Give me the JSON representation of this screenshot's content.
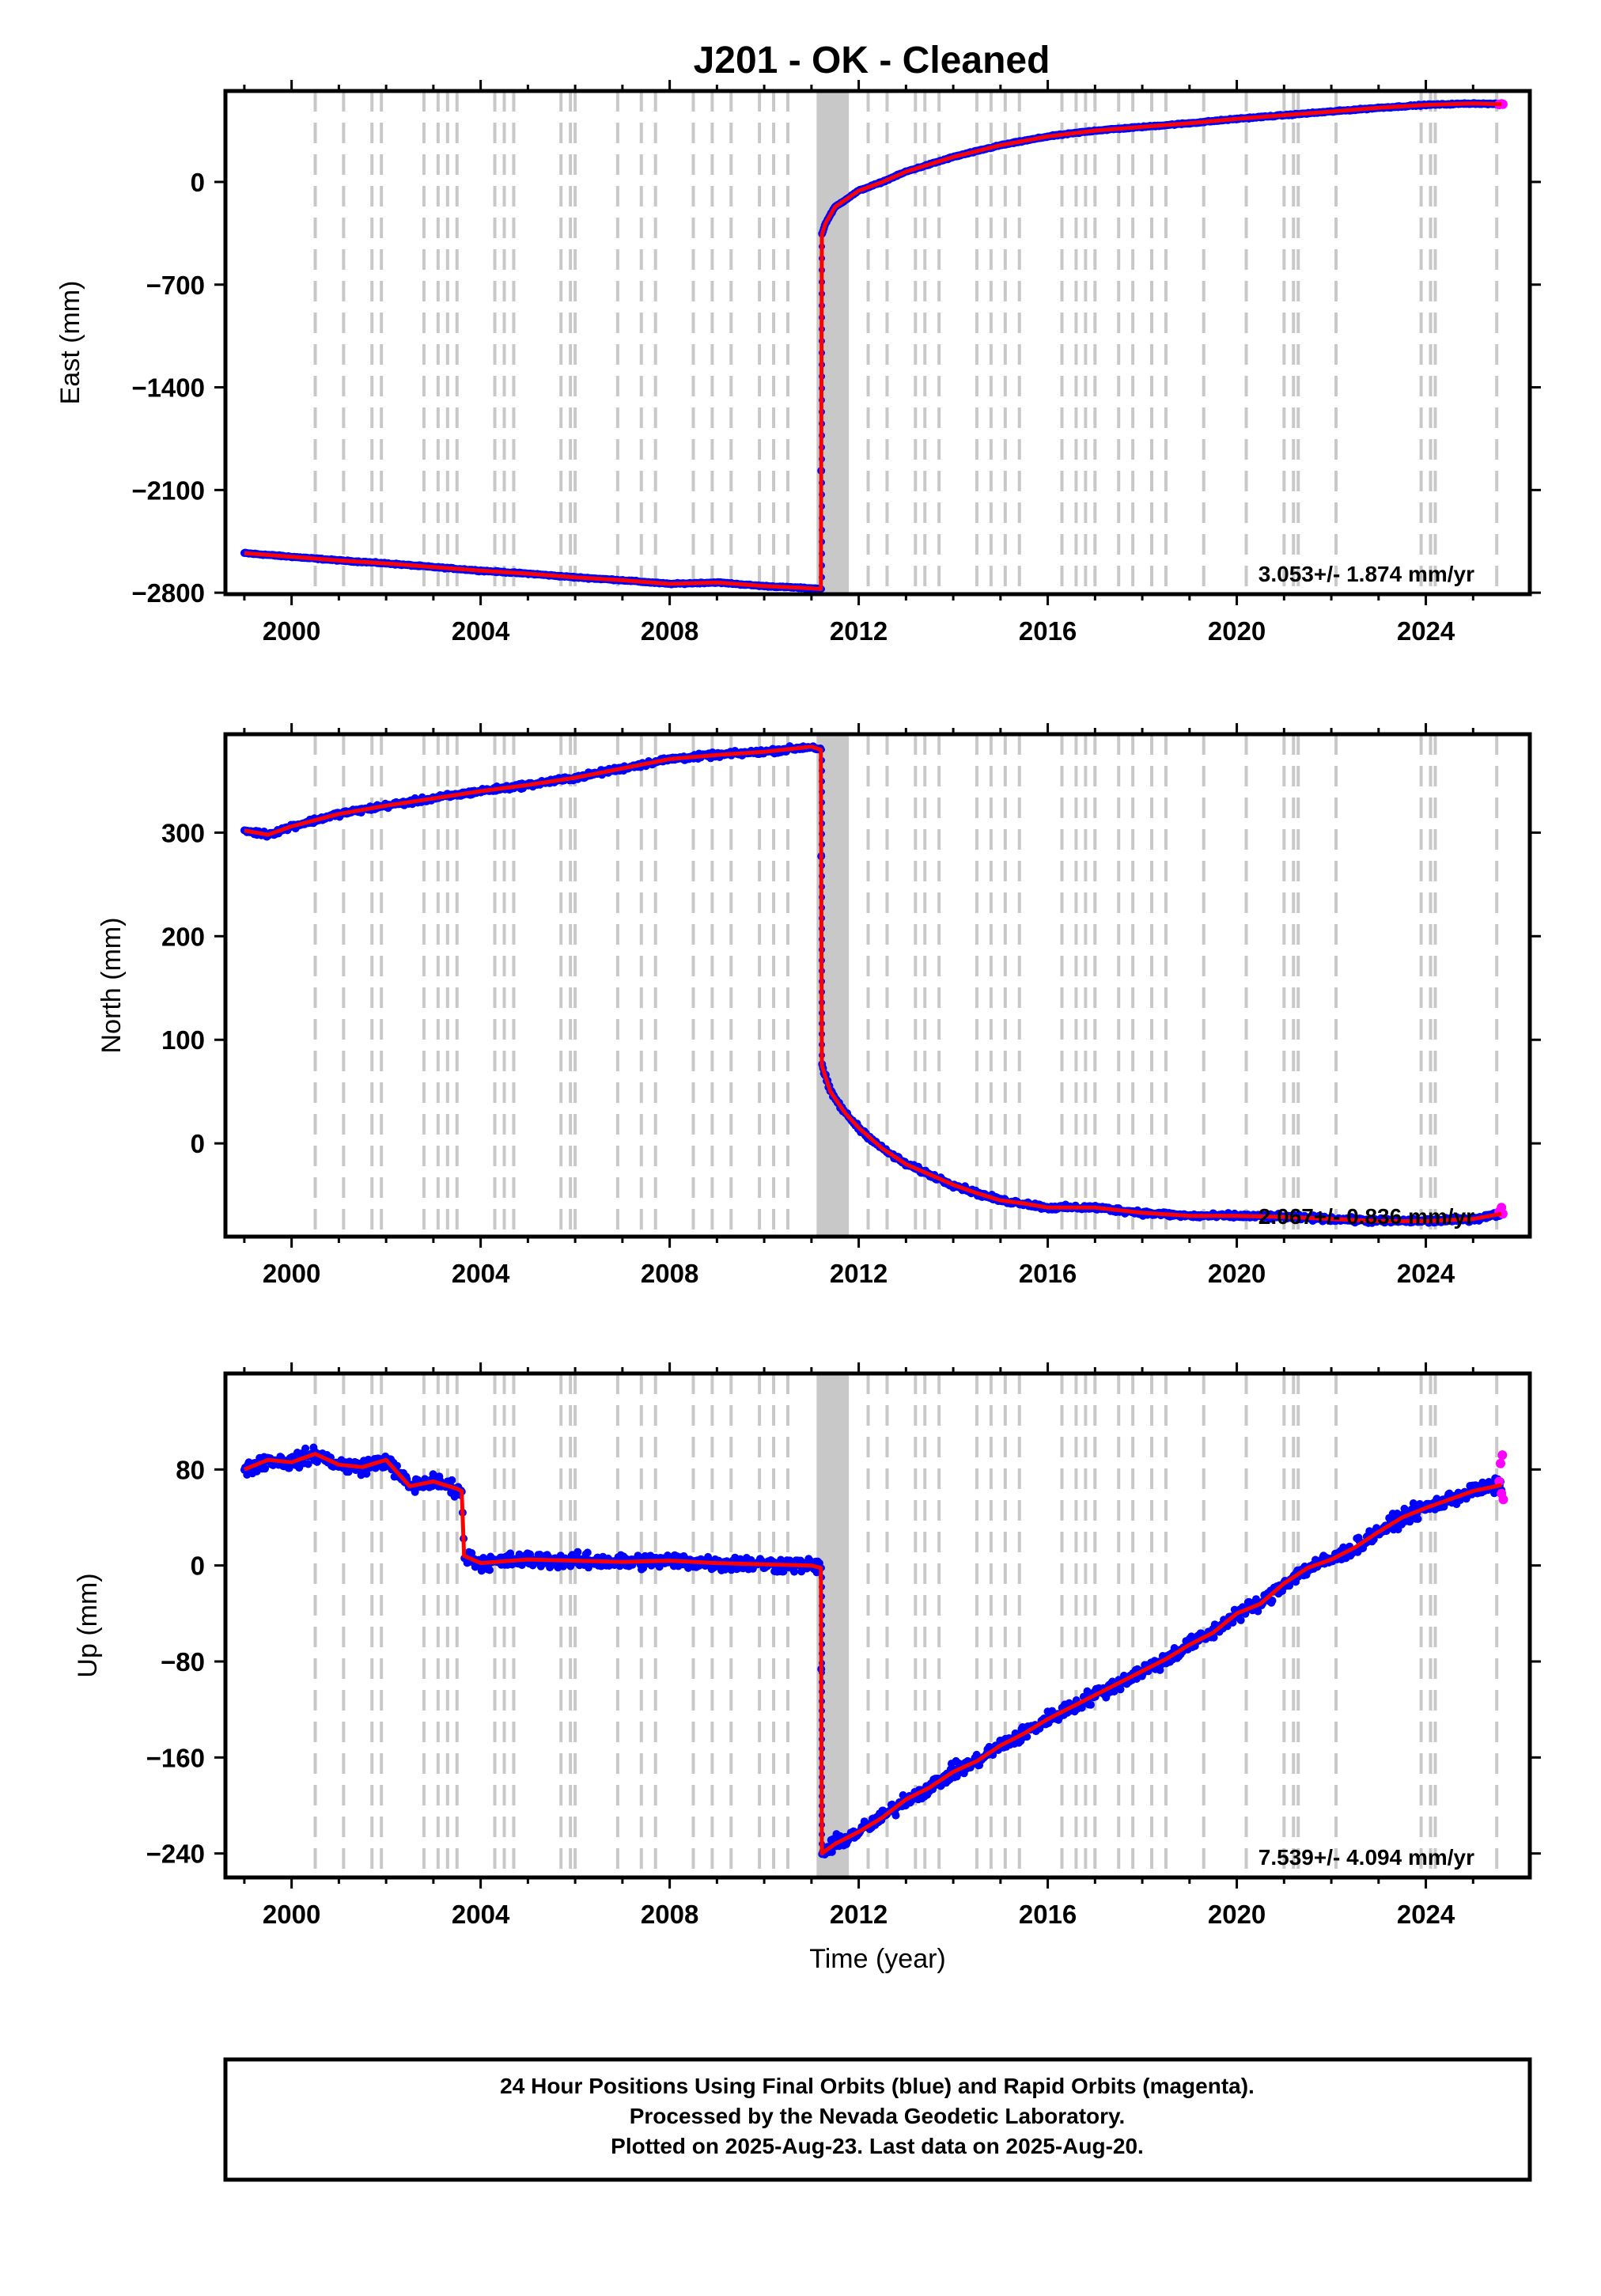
{
  "title": "J201  - OK - Cleaned",
  "colors": {
    "final_orbits": "#0000ff",
    "rapid_orbits": "#ff00ff",
    "trend": "#ff0000",
    "event_lines": "#c8c8c8"
  },
  "footer": {
    "line1": "24 Hour Positions Using Final Orbits (blue) and Rapid Orbits (magenta).",
    "line2": "Processed by the Nevada Geodetic Laboratory.",
    "line3": "Plotted on 2025-Aug-23. Last data on 2025-Aug-20."
  },
  "chart_data": [
    {
      "type": "scatter",
      "panel": "east",
      "ylabel": "East (mm)",
      "xlabel": "",
      "xlim": [
        1998.6,
        2026.2
      ],
      "ylim": [
        -2810,
        620
      ],
      "x_ticks": [
        2000,
        2004,
        2008,
        2012,
        2016,
        2020,
        2024
      ],
      "y_ticks": [
        0,
        -700,
        -1400,
        -2100,
        -2800
      ],
      "rate_text": "3.053+/- 1.874 mm/yr",
      "series": [
        {
          "name": "",
          "color": "#0000ff",
          "x": [
            1999.0,
            2000.0,
            2001.0,
            2002.0,
            2003.0,
            2004.0,
            2005.0,
            2006.0,
            2007.0,
            2008.0,
            2009.0,
            2010.0,
            2011.0,
            2011.2,
            2011.22,
            2011.3,
            2011.5,
            2012.0,
            2012.5,
            2013.0,
            2014.0,
            2015.0,
            2016.0,
            2017.0,
            2018.0,
            2019.0,
            2020.0,
            2021.0,
            2022.0,
            2023.0,
            2024.0,
            2025.0,
            2025.6
          ],
          "y": [
            -2530,
            -2555,
            -2580,
            -2600,
            -2625,
            -2650,
            -2670,
            -2695,
            -2715,
            -2740,
            -2730,
            -2755,
            -2770,
            -2775,
            -360,
            -280,
            -170,
            -60,
            0,
            70,
            170,
            250,
            310,
            350,
            375,
            400,
            430,
            455,
            480,
            505,
            525,
            535,
            530
          ]
        },
        {
          "name": "",
          "color": "#ff00ff",
          "x": [
            2025.55,
            2025.6,
            2025.63
          ],
          "y": [
            528,
            532,
            530
          ]
        }
      ]
    },
    {
      "type": "scatter",
      "panel": "north",
      "ylabel": "North (mm)",
      "xlabel": "",
      "xlim": [
        1998.6,
        2026.2
      ],
      "ylim": [
        -90,
        395
      ],
      "x_ticks": [
        2000,
        2004,
        2008,
        2012,
        2016,
        2020,
        2024
      ],
      "y_ticks": [
        300,
        200,
        100,
        0
      ],
      "rate_text": "2.067+/- 0.836 mm/yr",
      "series": [
        {
          "name": "",
          "color": "#0000ff",
          "x": [
            1999.0,
            1999.5,
            2000.0,
            2001.0,
            2002.0,
            2003.0,
            2004.0,
            2005.0,
            2006.0,
            2007.0,
            2008.0,
            2009.0,
            2010.0,
            2011.0,
            2011.2,
            2011.22,
            2011.4,
            2011.7,
            2012.0,
            2012.5,
            2013.0,
            2013.5,
            2014.0,
            2014.5,
            2015.0,
            2015.5,
            2016.0,
            2016.5,
            2017.0,
            2018.0,
            2019.0,
            2020.0,
            2021.0,
            2022.0,
            2023.0,
            2024.0,
            2025.0,
            2025.6
          ],
          "y": [
            302,
            298,
            306,
            318,
            326,
            333,
            340,
            346,
            353,
            362,
            371,
            375,
            378,
            383,
            380,
            75,
            50,
            30,
            15,
            -5,
            -20,
            -30,
            -40,
            -48,
            -55,
            -58,
            -62,
            -62,
            -62,
            -67,
            -70,
            -70,
            -71,
            -73,
            -75,
            -75,
            -73,
            -68
          ]
        },
        {
          "name": "",
          "color": "#ff00ff",
          "x": [
            2025.55,
            2025.6,
            2025.63
          ],
          "y": [
            -66,
            -62,
            -68
          ]
        }
      ]
    },
    {
      "type": "scatter",
      "panel": "up",
      "ylabel": "Up (mm)",
      "xlabel": "Time (year)",
      "xlim": [
        1998.6,
        2026.2
      ],
      "ylim": [
        -260,
        160
      ],
      "x_ticks": [
        2000,
        2004,
        2008,
        2012,
        2016,
        2020,
        2024
      ],
      "y_ticks": [
        80,
        0,
        -80,
        -160,
        -240
      ],
      "rate_text": "7.539+/- 4.094 mm/yr",
      "series": [
        {
          "name": "",
          "color": "#0000ff",
          "x": [
            1999.0,
            1999.5,
            2000.0,
            2000.5,
            2001.0,
            2001.5,
            2002.0,
            2002.5,
            2003.0,
            2003.5,
            2003.6,
            2003.65,
            2004.0,
            2005.0,
            2006.0,
            2007.0,
            2008.0,
            2009.0,
            2010.0,
            2011.0,
            2011.2,
            2011.22,
            2011.5,
            2012.0,
            2012.5,
            2013.0,
            2013.5,
            2014.0,
            2014.5,
            2015.0,
            2015.5,
            2016.0,
            2016.5,
            2017.0,
            2017.5,
            2018.0,
            2018.5,
            2019.0,
            2019.5,
            2020.0,
            2020.5,
            2021.0,
            2021.5,
            2022.0,
            2022.5,
            2023.0,
            2023.5,
            2024.0,
            2024.5,
            2025.0,
            2025.6
          ],
          "y": [
            80,
            88,
            86,
            93,
            84,
            82,
            88,
            66,
            70,
            64,
            62,
            8,
            2,
            5,
            4,
            3,
            4,
            2,
            1,
            0,
            -2,
            -240,
            -232,
            -222,
            -210,
            -195,
            -185,
            -172,
            -163,
            -150,
            -140,
            -128,
            -118,
            -108,
            -98,
            -88,
            -78,
            -66,
            -56,
            -40,
            -32,
            -15,
            -2,
            5,
            15,
            28,
            40,
            48,
            55,
            62,
            67
          ]
        },
        {
          "name": "",
          "color": "#ff00ff",
          "x": [
            2025.55,
            2025.58,
            2025.6,
            2025.62,
            2025.64
          ],
          "y": [
            70,
            85,
            60,
            92,
            55
          ]
        }
      ]
    }
  ],
  "event_lines": [
    2000.5,
    2001.1,
    2001.7,
    2001.9,
    2002.8,
    2003.1,
    2003.3,
    2003.5,
    2004.3,
    2004.5,
    2004.7,
    2005.7,
    2005.9,
    2006.0,
    2006.9,
    2007.4,
    2007.7,
    2008.5,
    2008.9,
    2009.3,
    2009.9,
    2010.2,
    2010.5,
    2011.2,
    2011.3,
    2011.4,
    2011.5,
    2011.6,
    2011.7,
    2012.2,
    2012.6,
    2013.2,
    2013.4,
    2013.7,
    2014.5,
    2014.8,
    2015.1,
    2015.4,
    2016.3,
    2016.6,
    2016.8,
    2017.0,
    2017.5,
    2017.8,
    2018.2,
    2018.5,
    2019.3,
    2020.2,
    2021.0,
    2021.2,
    2021.3,
    2022.1,
    2023.9,
    2024.1,
    2024.2,
    2025.5
  ]
}
